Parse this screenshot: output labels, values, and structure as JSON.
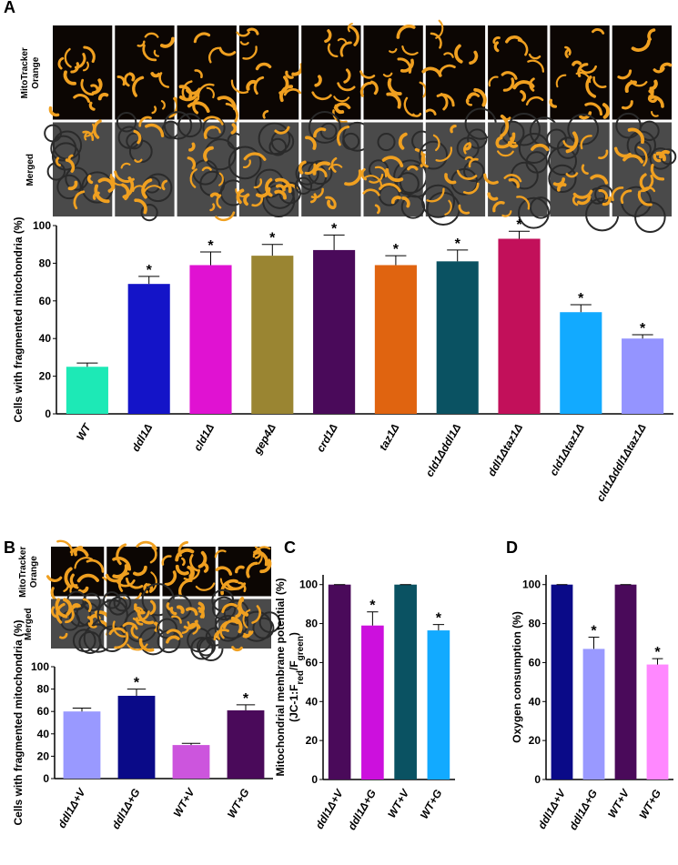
{
  "chart_data": [
    {
      "type": "bar",
      "panel": "A",
      "ylabel": "Cells with fragmented mitochondria (%)",
      "image_rows": [
        [
          "MitoTracker",
          "Orange"
        ],
        [
          "Merged"
        ]
      ],
      "categories": [
        "WT",
        "ddl1Δ",
        "cld1Δ",
        "gep4Δ",
        "crd1Δ",
        "taz1Δ",
        "cld1Δddl1Δ",
        "ddl1Δtaz1Δ",
        "cld1Δtaz1Δ",
        "cld1Δddl1Δtaz1Δ"
      ],
      "values": [
        25,
        69,
        79,
        84,
        87,
        79,
        81,
        93,
        54,
        40
      ],
      "errors": [
        2,
        4,
        7,
        6,
        8,
        5,
        6,
        4,
        4,
        2
      ],
      "colors": [
        "#1de9b6",
        "#1414c8",
        "#e012d2",
        "#9a8532",
        "#4a0a5a",
        "#e06410",
        "#0a5262",
        "#c2105a",
        "#12aaff",
        "#9494ff"
      ],
      "significant": [
        false,
        true,
        true,
        true,
        true,
        true,
        true,
        true,
        true,
        true
      ],
      "marker": "*",
      "ylim": [
        0,
        100
      ],
      "yticks": [
        0,
        20,
        40,
        60,
        80,
        100
      ]
    },
    {
      "type": "bar",
      "panel": "B",
      "ylabel": "Cells with fragmented mitochondria (%)",
      "image_rows": [
        [
          "MitoTracker",
          "Orange"
        ],
        [
          "Merged"
        ]
      ],
      "categories": [
        "ddl1Δ+V",
        "ddl1Δ+G",
        "WT+V",
        "WT+G"
      ],
      "values": [
        60,
        74,
        30,
        61
      ],
      "errors": [
        3,
        6,
        1.5,
        5
      ],
      "colors": [
        "#9999ff",
        "#0a0a88",
        "#cc55dd",
        "#4a0a5a"
      ],
      "significant": [
        false,
        true,
        false,
        true
      ],
      "marker": "*",
      "ylim": [
        0,
        100
      ],
      "yticks": [
        0,
        20,
        40,
        60,
        80,
        100
      ]
    },
    {
      "type": "bar",
      "panel": "C",
      "ylabel": "Mitochondrial membrane potential (%)",
      "ylabel_line2": [
        "(JC-1:F",
        "red",
        "/F",
        "green",
        ")"
      ],
      "categories": [
        "ddl1Δ+V",
        "ddl1Δ+G",
        "WT+V",
        "WT+G"
      ],
      "values": [
        100,
        79,
        100,
        76.5
      ],
      "errors": [
        0,
        7,
        0,
        3
      ],
      "colors": [
        "#4a0a5a",
        "#cc10dd",
        "#0a5262",
        "#12aaff"
      ],
      "significant": [
        false,
        true,
        false,
        true
      ],
      "marker": "*",
      "ylim": [
        0,
        105
      ],
      "yticks": [
        0,
        20,
        40,
        60,
        80,
        100
      ]
    },
    {
      "type": "bar",
      "panel": "D",
      "ylabel": "Oxygen consumption (%)",
      "categories": [
        "ddl1Δ+V",
        "ddl1Δ+G",
        "WT+V",
        "WT+G"
      ],
      "values": [
        100,
        67,
        100,
        59
      ],
      "errors": [
        0,
        6,
        0,
        3
      ],
      "colors": [
        "#0a0a88",
        "#9999ff",
        "#4a0a5a",
        "#ff88ff"
      ],
      "significant": [
        false,
        true,
        false,
        true
      ],
      "marker": "*",
      "ylim": [
        0,
        105
      ],
      "yticks": [
        0,
        20,
        40,
        60,
        80,
        100
      ]
    }
  ]
}
